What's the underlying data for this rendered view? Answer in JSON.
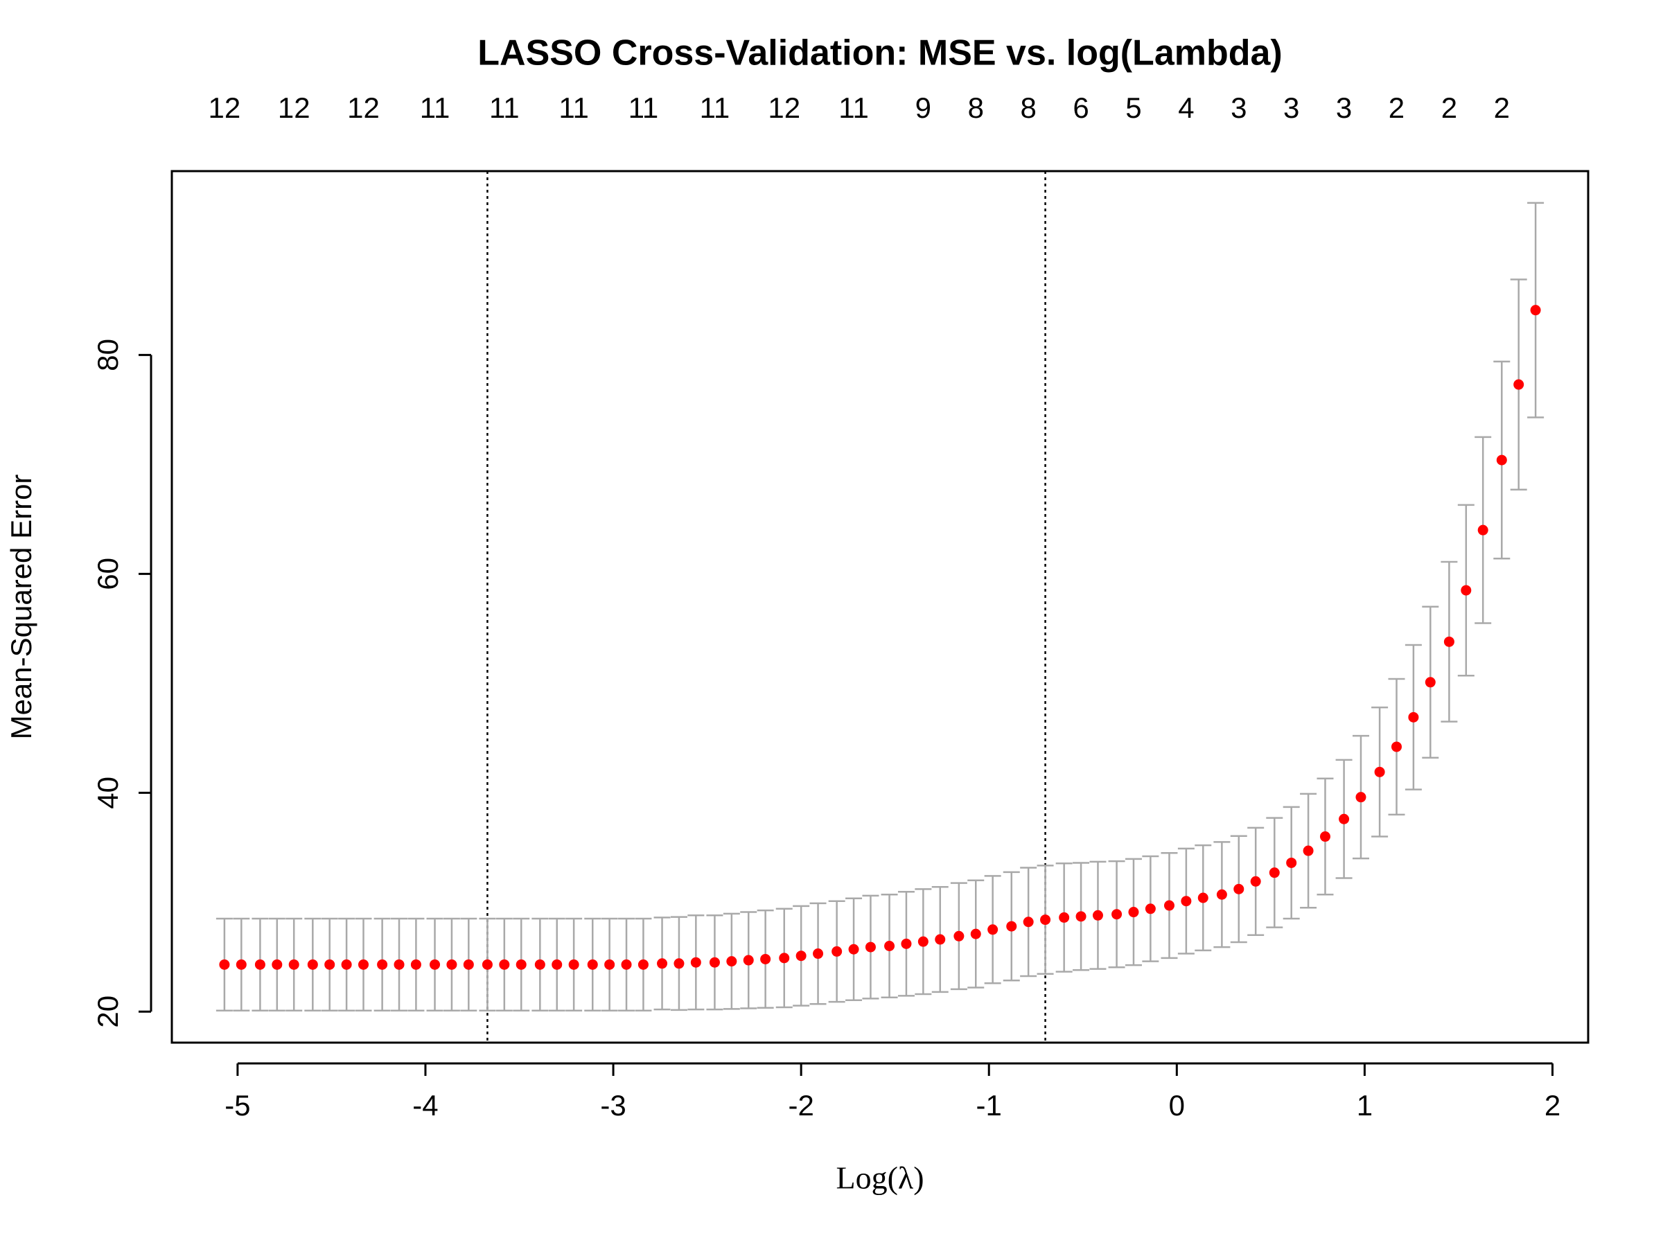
{
  "chart_data": {
    "type": "errorbar",
    "title": "LASSO Cross-Validation: MSE vs. log(Lambda)",
    "x_label": "Log(λ)",
    "y_label": "Mean-Squared Error",
    "x": [
      -5.07,
      -4.98,
      -4.88,
      -4.79,
      -4.7,
      -4.6,
      -4.51,
      -4.42,
      -4.33,
      -4.23,
      -4.14,
      -4.05,
      -3.95,
      -3.86,
      -3.77,
      -3.67,
      -3.58,
      -3.49,
      -3.39,
      -3.3,
      -3.21,
      -3.11,
      -3.02,
      -2.93,
      -2.84,
      -2.74,
      -2.65,
      -2.56,
      -2.46,
      -2.37,
      -2.28,
      -2.19,
      -2.09,
      -2.0,
      -1.91,
      -1.81,
      -1.72,
      -1.63,
      -1.53,
      -1.44,
      -1.35,
      -1.26,
      -1.16,
      -1.07,
      -0.98,
      -0.88,
      -0.79,
      -0.7,
      -0.6,
      -0.51,
      -0.42,
      -0.32,
      -0.23,
      -0.14,
      -0.04,
      0.05,
      0.14,
      0.24,
      0.33,
      0.42,
      0.52,
      0.61,
      0.7,
      0.79,
      0.89,
      0.98,
      1.08,
      1.17,
      1.26,
      1.35,
      1.45,
      1.54,
      1.63,
      1.73,
      1.82,
      1.91
    ],
    "values": [
      24.3,
      24.3,
      24.3,
      24.3,
      24.3,
      24.3,
      24.3,
      24.3,
      24.3,
      24.3,
      24.3,
      24.3,
      24.3,
      24.3,
      24.3,
      24.3,
      24.3,
      24.3,
      24.3,
      24.3,
      24.3,
      24.3,
      24.3,
      24.3,
      24.3,
      24.4,
      24.4,
      24.5,
      24.5,
      24.6,
      24.7,
      24.8,
      24.9,
      25.1,
      25.3,
      25.5,
      25.7,
      25.9,
      26.0,
      26.2,
      26.4,
      26.6,
      26.9,
      27.1,
      27.5,
      27.8,
      28.2,
      28.4,
      28.6,
      28.7,
      28.8,
      28.9,
      29.1,
      29.4,
      29.7,
      30.1,
      30.4,
      30.7,
      31.2,
      31.9,
      32.7,
      33.6,
      34.7,
      36.0,
      37.6,
      39.6,
      41.9,
      44.2,
      46.9,
      50.1,
      53.8,
      58.5,
      64.0,
      70.4,
      77.3,
      84.1
    ],
    "errors": [
      4.2,
      4.2,
      4.2,
      4.2,
      4.2,
      4.2,
      4.2,
      4.2,
      4.2,
      4.2,
      4.2,
      4.2,
      4.2,
      4.2,
      4.2,
      4.2,
      4.2,
      4.2,
      4.2,
      4.2,
      4.2,
      4.2,
      4.2,
      4.2,
      4.2,
      4.2,
      4.25,
      4.3,
      4.3,
      4.35,
      4.4,
      4.45,
      4.5,
      4.55,
      4.6,
      4.6,
      4.65,
      4.7,
      4.7,
      4.75,
      4.8,
      4.8,
      4.85,
      4.9,
      4.9,
      4.95,
      4.95,
      4.95,
      4.95,
      4.9,
      4.9,
      4.85,
      4.85,
      4.8,
      4.8,
      4.8,
      4.8,
      4.8,
      4.85,
      4.9,
      5.0,
      5.1,
      5.2,
      5.3,
      5.4,
      5.6,
      5.9,
      6.2,
      6.6,
      6.9,
      7.3,
      7.8,
      8.5,
      9.0,
      9.6,
      9.8
    ],
    "color": "#ff0000",
    "error_color": "#a9a9a9",
    "top_labels": {
      "x": [
        -5.07,
        -4.7,
        -4.33,
        -3.95,
        -3.58,
        -3.21,
        -2.84,
        -2.46,
        -2.09,
        -1.72,
        -1.35,
        -1.07,
        -0.79,
        -0.51,
        -0.23,
        0.05,
        0.33,
        0.61,
        0.89,
        1.17,
        1.45,
        1.73
      ],
      "labels": [
        12,
        12,
        12,
        11,
        11,
        11,
        11,
        11,
        12,
        11,
        9,
        8,
        8,
        6,
        5,
        4,
        3,
        3,
        3,
        2,
        2,
        2
      ]
    },
    "vlines": [
      -3.67,
      -0.7
    ],
    "xlim": [
      -5.35,
      2.19
    ],
    "ylim": [
      17.17,
      96.8
    ],
    "xticks": [
      -5,
      -4,
      -3,
      -2,
      -1,
      0,
      1,
      2
    ],
    "yticks": [
      20,
      40,
      60,
      80
    ]
  }
}
